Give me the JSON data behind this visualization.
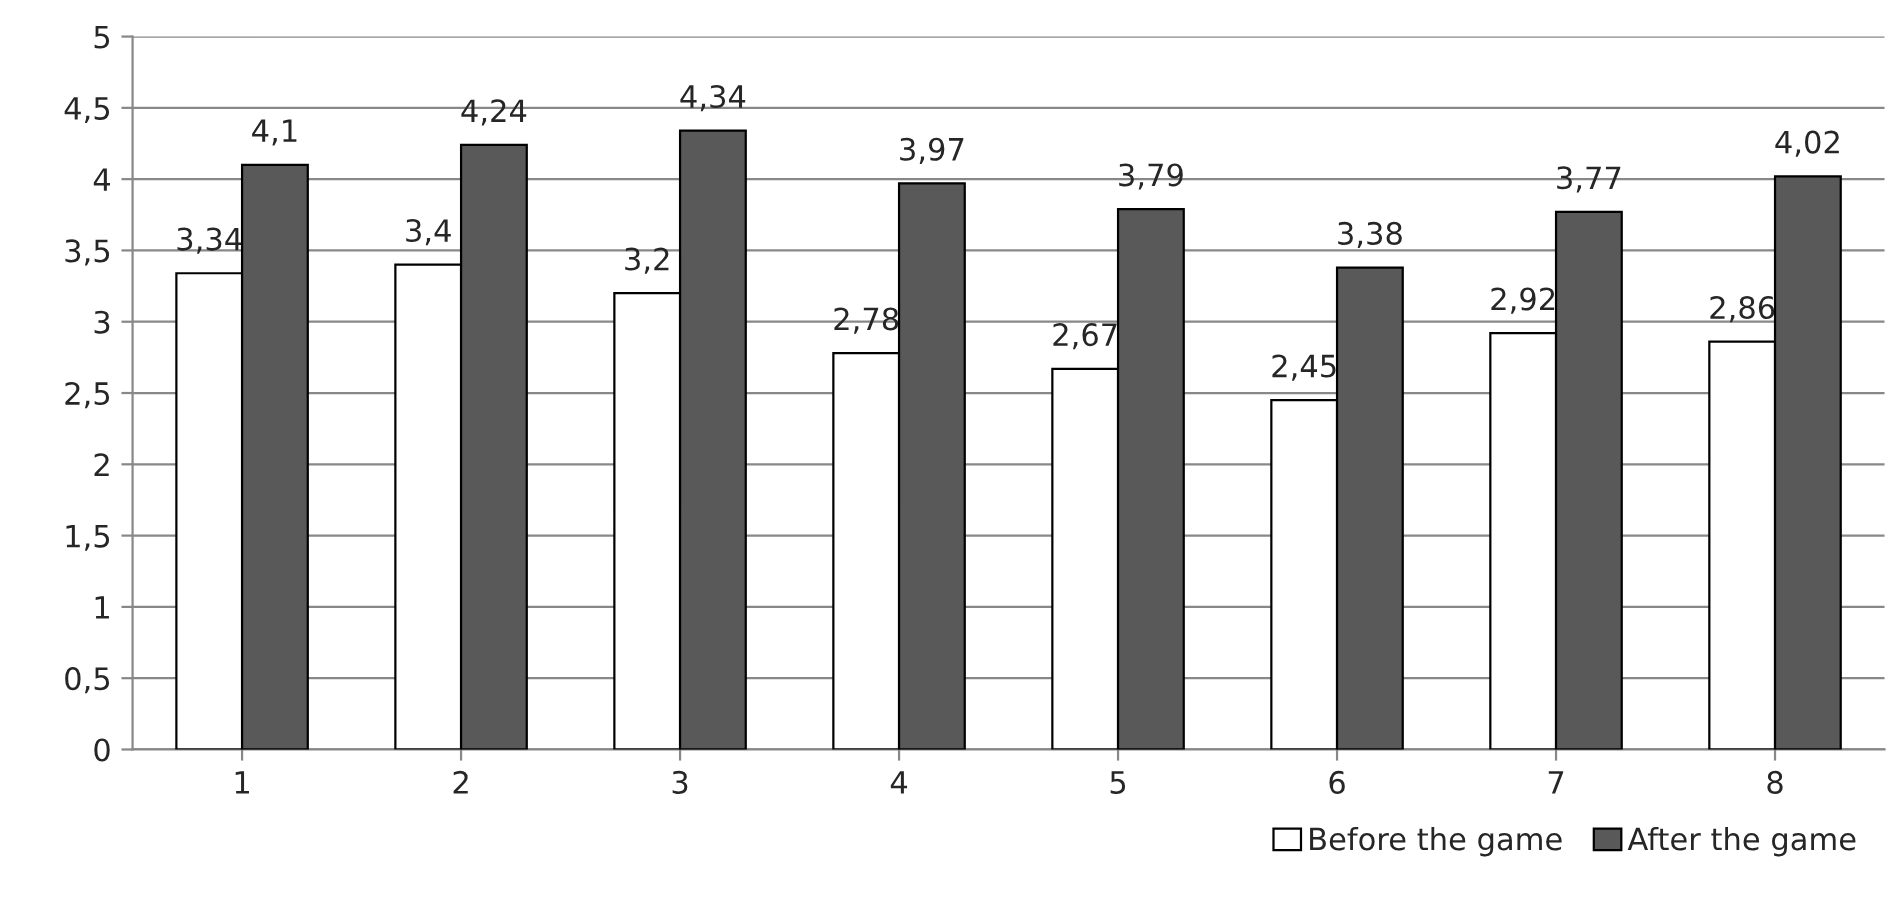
{
  "chart_data": {
    "type": "bar",
    "categories": [
      "1",
      "2",
      "3",
      "4",
      "5",
      "6",
      "7",
      "8"
    ],
    "series": [
      {
        "name": "Before the game",
        "color": "#ffffff",
        "values": [
          3.34,
          3.4,
          3.2,
          2.78,
          2.67,
          2.45,
          2.92,
          2.86
        ],
        "value_labels": [
          "3,34",
          "3,4",
          "3,2",
          "2,78",
          "2,67",
          "2,45",
          "2,92",
          "2,86"
        ]
      },
      {
        "name": "After the game",
        "color": "#595959",
        "values": [
          4.1,
          4.24,
          4.34,
          3.97,
          3.79,
          3.38,
          3.77,
          4.02
        ],
        "value_labels": [
          "4,1",
          "4,24",
          "4,34",
          "3,97",
          "3,79",
          "3,38",
          "3,77",
          "4,02"
        ]
      }
    ],
    "ylim": [
      0,
      5
    ],
    "yticks": [
      0,
      {
        "value": 0.5,
        "label": "0,5"
      },
      1,
      {
        "value": 1.5,
        "label": "1,5"
      },
      2,
      {
        "value": 2.5,
        "label": "2,5"
      },
      3,
      {
        "value": 3.5,
        "label": "3,5"
      },
      4,
      {
        "value": 4.5,
        "label": "4,5"
      },
      5
    ],
    "grid": "y",
    "legend": "bottom right"
  }
}
